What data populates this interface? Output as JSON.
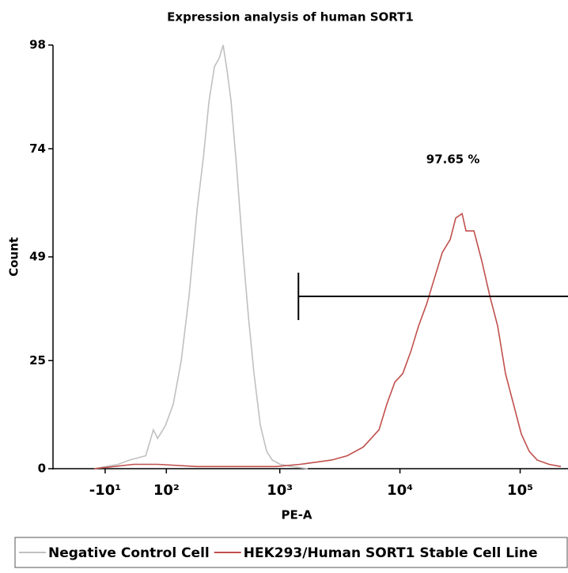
{
  "chart_data": {
    "type": "line",
    "title": "Expression analysis of human SORT1",
    "x_label": "PE-A",
    "y_label": "Count",
    "xscale": "biex",
    "xlim": [
      -110,
      250000
    ],
    "ylim": [
      0,
      98
    ],
    "xticks": [
      {
        "value": -10,
        "label": "-10¹"
      },
      {
        "value": 100,
        "label": "10²"
      },
      {
        "value": 1000,
        "label": "10³"
      },
      {
        "value": 10000,
        "label": "10⁴"
      },
      {
        "value": 100000,
        "label": "10⁵"
      }
    ],
    "yticks": [
      0,
      25,
      49,
      74,
      98
    ],
    "gate": {
      "label": "97.65 %",
      "x_start": 1430
    },
    "series": [
      {
        "name": "Negative Control Cell",
        "color": "#c0c0c0",
        "x": [
          -27,
          10,
          28,
          56,
          71,
          80,
          98,
          118,
          141,
          167,
          198,
          225,
          252,
          281,
          309,
          334,
          361,
          390,
          434,
          492,
          547,
          609,
          688,
          777,
          865,
          1006,
          1264,
          1712
        ],
        "values": [
          0,
          1,
          2,
          3,
          9,
          7,
          10,
          15,
          25,
          40,
          60,
          72,
          85,
          93,
          95,
          98,
          92,
          85,
          70,
          50,
          35,
          22,
          10,
          4,
          2,
          1,
          0.5,
          0
        ]
      },
      {
        "name": "HEK293/Human SORT1 Stable Cell Line",
        "color": "#c0504d",
        "x": [
          -27,
          35,
          80,
          198,
          434,
          932,
          1472,
          2696,
          3650,
          4945,
          6696,
          7790,
          9064,
          10547,
          12272,
          14280,
          16616,
          19333,
          22494,
          26172,
          29105,
          32853,
          35452,
          41248,
          47985,
          55827,
          64959,
          75580,
          87943,
          102322,
          119050,
          138520,
          173893,
          218250
        ],
        "values": [
          0,
          1,
          1,
          0.5,
          0.5,
          0.5,
          1,
          2,
          3,
          5,
          9,
          15,
          20,
          22,
          27,
          33,
          38,
          44,
          50,
          53,
          58,
          59,
          55,
          55,
          48,
          40,
          33,
          22,
          15,
          8,
          4,
          2,
          1,
          0.5
        ]
      }
    ]
  }
}
